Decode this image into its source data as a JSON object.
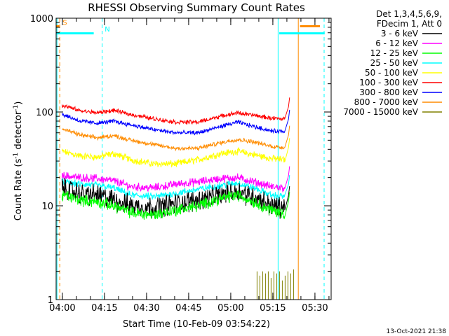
{
  "chart_data": {
    "type": "line",
    "title": "RHESSI Observing Summary Count Rates",
    "xlabel": "Start Time (10-Feb-09 03:54:22)",
    "ylabel_main": "Count Rate (s",
    "ylabel_sup1": "-1",
    "ylabel_mid": " detector",
    "ylabel_sup2": "-1",
    "ylabel_end": ")",
    "yscale": "log",
    "ylim": [
      1,
      1000
    ],
    "xlim_minutes": [
      3.4,
      101.4
    ],
    "x_unit": "minutes after 03:54:22",
    "x_ticks": [
      {
        "label": "04:00",
        "minutes": 5.63
      },
      {
        "label": "04:15",
        "minutes": 20.63
      },
      {
        "label": "04:30",
        "minutes": 35.63
      },
      {
        "label": "04:45",
        "minutes": 50.63
      },
      {
        "label": "05:00",
        "minutes": 65.63
      },
      {
        "label": "05:15",
        "minutes": 80.63
      },
      {
        "label": "05:30",
        "minutes": 95.63
      }
    ],
    "y_ticks": [
      {
        "label": "1",
        "value": 1
      },
      {
        "label": "10",
        "value": 10
      },
      {
        "label": "100",
        "value": 100
      },
      {
        "label": "1000",
        "value": 1000
      }
    ],
    "legend_header": [
      "Det 1,3,4,5,6,9,",
      "FDecim 1, Att 0"
    ],
    "legend_position": "right",
    "series": [
      {
        "name": "3 - 6 keV",
        "color": "#000000",
        "noise": 0.09,
        "points": [
          [
            5.5,
            15.5
          ],
          [
            12,
            13.5
          ],
          [
            18,
            13
          ],
          [
            24,
            11.5
          ],
          [
            30,
            10
          ],
          [
            38,
            9.5
          ],
          [
            46,
            10.5
          ],
          [
            54,
            11.5
          ],
          [
            62,
            13
          ],
          [
            68,
            14.5
          ],
          [
            74,
            12.5
          ],
          [
            80,
            10
          ],
          [
            85,
            9.5
          ]
        ]
      },
      {
        "name": "6 - 12 keV",
        "color": "#ff00ff",
        "noise": 0.035,
        "points": [
          [
            5.5,
            21
          ],
          [
            12,
            20
          ],
          [
            18,
            19.5
          ],
          [
            24,
            18.5
          ],
          [
            30,
            16
          ],
          [
            38,
            15.5
          ],
          [
            46,
            17
          ],
          [
            54,
            18
          ],
          [
            62,
            19.5
          ],
          [
            68,
            20
          ],
          [
            74,
            18
          ],
          [
            80,
            16
          ],
          [
            85,
            15.5
          ]
        ]
      },
      {
        "name": "12 - 25 keV",
        "color": "#00ff00",
        "noise": 0.05,
        "points": [
          [
            5.5,
            13
          ],
          [
            12,
            11.5
          ],
          [
            18,
            11
          ],
          [
            24,
            10
          ],
          [
            30,
            8.5
          ],
          [
            38,
            8
          ],
          [
            46,
            9
          ],
          [
            54,
            10
          ],
          [
            62,
            12
          ],
          [
            68,
            13
          ],
          [
            74,
            11
          ],
          [
            80,
            9
          ],
          [
            85,
            8.3
          ]
        ]
      },
      {
        "name": "25 - 50 keV",
        "color": "#00ffff",
        "noise": 0.03,
        "points": [
          [
            5.5,
            18
          ],
          [
            12,
            17
          ],
          [
            18,
            16.5
          ],
          [
            24,
            15.5
          ],
          [
            30,
            13
          ],
          [
            38,
            12.5
          ],
          [
            46,
            13.5
          ],
          [
            54,
            15
          ],
          [
            62,
            16.5
          ],
          [
            68,
            17.5
          ],
          [
            74,
            15.5
          ],
          [
            80,
            13
          ],
          [
            85,
            12.5
          ]
        ]
      },
      {
        "name": "50 - 100 keV",
        "color": "#ffff00",
        "noise": 0.03,
        "points": [
          [
            5.5,
            38
          ],
          [
            12,
            34
          ],
          [
            18,
            33
          ],
          [
            24,
            36
          ],
          [
            30,
            31
          ],
          [
            38,
            28
          ],
          [
            46,
            28
          ],
          [
            54,
            31
          ],
          [
            62,
            36
          ],
          [
            68,
            38
          ],
          [
            74,
            35
          ],
          [
            80,
            32
          ],
          [
            85,
            31
          ]
        ]
      },
      {
        "name": "100 - 300 keV",
        "color": "#ff0000",
        "noise": 0.018,
        "points": [
          [
            5.5,
            118
          ],
          [
            12,
            103
          ],
          [
            18,
            98
          ],
          [
            24,
            104
          ],
          [
            30,
            94
          ],
          [
            38,
            85
          ],
          [
            46,
            78
          ],
          [
            54,
            78
          ],
          [
            62,
            90
          ],
          [
            68,
            98
          ],
          [
            74,
            92
          ],
          [
            80,
            86
          ],
          [
            85,
            84
          ]
        ]
      },
      {
        "name": "300 - 800 keV",
        "color": "#0000ff",
        "noise": 0.018,
        "points": [
          [
            5.5,
            95
          ],
          [
            12,
            80
          ],
          [
            18,
            76
          ],
          [
            24,
            80
          ],
          [
            30,
            73
          ],
          [
            38,
            65
          ],
          [
            46,
            60
          ],
          [
            54,
            60
          ],
          [
            62,
            70
          ],
          [
            68,
            78
          ],
          [
            74,
            70
          ],
          [
            80,
            63
          ],
          [
            85,
            62
          ]
        ]
      },
      {
        "name": "800 - 7000 keV",
        "color": "#ff8c00",
        "noise": 0.018,
        "points": [
          [
            5.5,
            66
          ],
          [
            12,
            57
          ],
          [
            18,
            53
          ],
          [
            24,
            56
          ],
          [
            30,
            50
          ],
          [
            38,
            45
          ],
          [
            46,
            41
          ],
          [
            54,
            41
          ],
          [
            62,
            47
          ],
          [
            68,
            51
          ],
          [
            74,
            48
          ],
          [
            80,
            43
          ],
          [
            85,
            42
          ]
        ]
      },
      {
        "name": "7000 - 15000 keV",
        "color": "#808000",
        "noise": 0,
        "points": []
      }
    ],
    "flags": [
      {
        "label": "S",
        "color": "#ff8c00",
        "text_minutes": 5.7,
        "text_value": 850,
        "bar_start": 3.5,
        "bar_end": 4.5,
        "bar_value": 820
      },
      {
        "label": "N",
        "color": "#00ffff",
        "text_minutes": 20.7,
        "text_value": 720,
        "bar_start": 3.5,
        "bar_end": 16.8,
        "bar_value": 690
      }
    ],
    "flag_bars": [
      {
        "color": "#00ffff",
        "start": 82.9,
        "end": 99.1,
        "value": 690
      },
      {
        "color": "#ff8c00",
        "start": 90.3,
        "end": 97.4,
        "value": 820
      }
    ],
    "vertical_lines": [
      {
        "minutes": 3.7,
        "color": "#00ffff",
        "style": "solid"
      },
      {
        "minutes": 4.7,
        "color": "#ff8c00",
        "style": "dashed"
      },
      {
        "minutes": 19.8,
        "color": "#00ffff",
        "style": "dashed"
      },
      {
        "minutes": 82.5,
        "color": "#00ffff",
        "style": "solid"
      },
      {
        "minutes": 89.7,
        "color": "#ff8c00",
        "style": "solid"
      },
      {
        "minutes": 98.9,
        "color": "#00ffff",
        "style": "dashed"
      }
    ],
    "footer_timestamp": "13-Oct-2021 21:38"
  }
}
